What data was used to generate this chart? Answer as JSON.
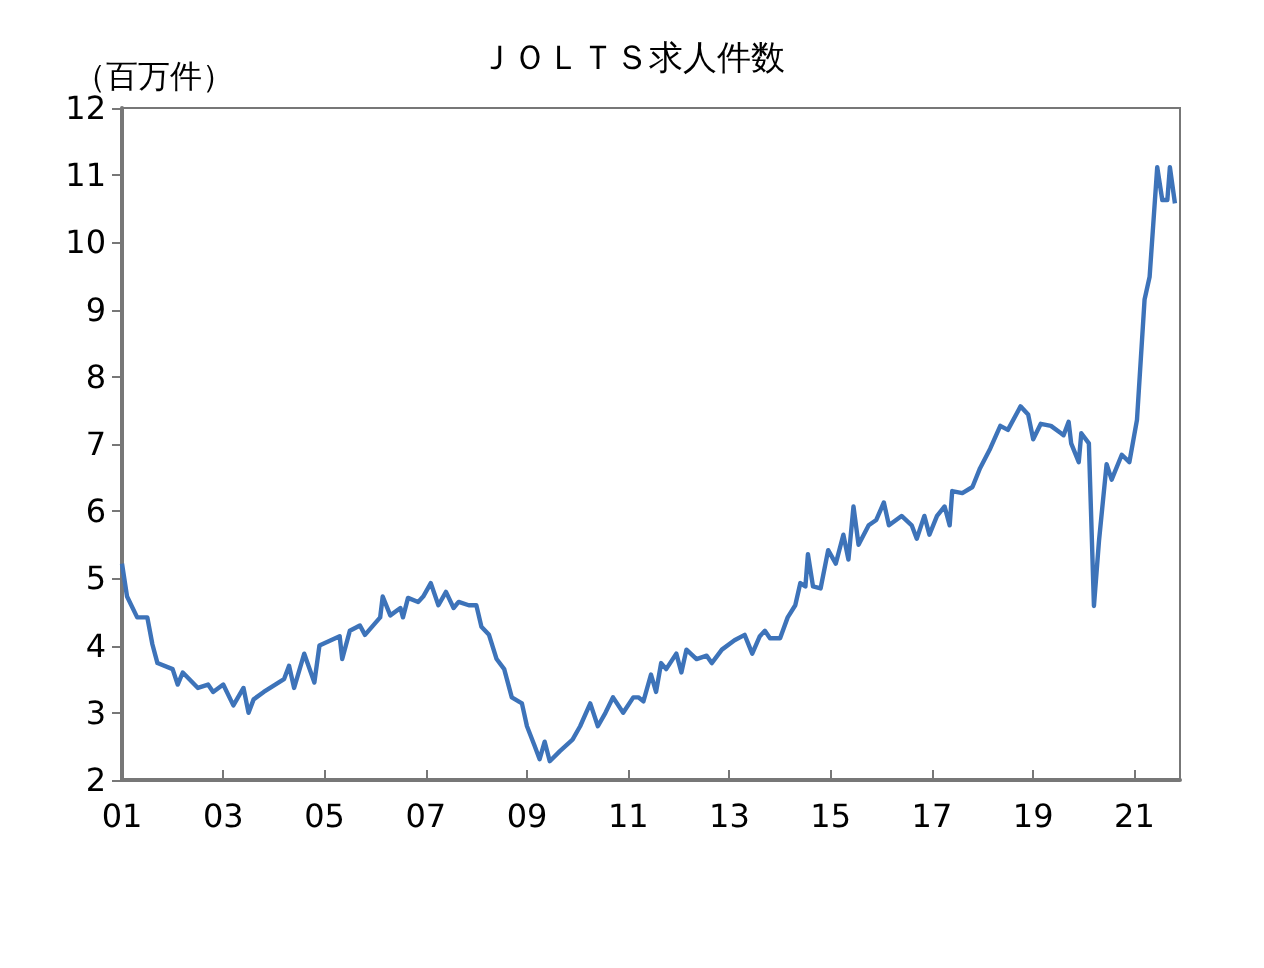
{
  "chart_data": {
    "type": "line",
    "title": "ＪＯＬＴＳ求人件数",
    "ylabel": "（百万件）",
    "xlim": [
      2001,
      2021.9
    ],
    "ylim": [
      2,
      12
    ],
    "xticks": [
      {
        "value": 2001,
        "label": "01"
      },
      {
        "value": 2003,
        "label": "03"
      },
      {
        "value": 2005,
        "label": "05"
      },
      {
        "value": 2007,
        "label": "07"
      },
      {
        "value": 2009,
        "label": "09"
      },
      {
        "value": 2011,
        "label": "11"
      },
      {
        "value": 2013,
        "label": "13"
      },
      {
        "value": 2015,
        "label": "15"
      },
      {
        "value": 2017,
        "label": "17"
      },
      {
        "value": 2019,
        "label": "19"
      },
      {
        "value": 2021,
        "label": "21"
      }
    ],
    "yticks": [
      2,
      3,
      4,
      5,
      6,
      7,
      8,
      9,
      10,
      11,
      12
    ],
    "marker": "none",
    "series": [
      {
        "color": "#3d73b9",
        "x": [
          2001.0,
          2001.1,
          2001.3,
          2001.5,
          2001.6,
          2001.7,
          2002.0,
          2002.1,
          2002.2,
          2002.5,
          2002.7,
          2002.8,
          2003.0,
          2003.2,
          2003.4,
          2003.5,
          2003.6,
          2003.8,
          2004.2,
          2004.3,
          2004.4,
          2004.6,
          2004.8,
          2004.9,
          2005.3,
          2005.35,
          2005.5,
          2005.7,
          2005.8,
          2006.1,
          2006.15,
          2006.3,
          2006.5,
          2006.55,
          2006.65,
          2006.85,
          2006.95,
          2007.1,
          2007.25,
          2007.4,
          2007.55,
          2007.65,
          2007.85,
          2008.0,
          2008.1,
          2008.25,
          2008.4,
          2008.55,
          2008.7,
          2008.9,
          2009.0,
          2009.15,
          2009.25,
          2009.35,
          2009.45,
          2009.65,
          2009.9,
          2010.05,
          2010.25,
          2010.4,
          2010.55,
          2010.7,
          2010.9,
          2011.1,
          2011.2,
          2011.3,
          2011.45,
          2011.55,
          2011.65,
          2011.75,
          2011.95,
          2012.05,
          2012.15,
          2012.35,
          2012.55,
          2012.65,
          2012.85,
          2013.1,
          2013.3,
          2013.45,
          2013.6,
          2013.7,
          2013.8,
          2014.0,
          2014.15,
          2014.3,
          2014.4,
          2014.5,
          2014.55,
          2014.65,
          2014.8,
          2014.95,
          2015.1,
          2015.25,
          2015.35,
          2015.45,
          2015.55,
          2015.75,
          2015.9,
          2016.05,
          2016.15,
          2016.4,
          2016.6,
          2016.7,
          2016.85,
          2016.95,
          2017.1,
          2017.25,
          2017.35,
          2017.4,
          2017.6,
          2017.8,
          2017.95,
          2018.15,
          2018.35,
          2018.5,
          2018.75,
          2018.9,
          2019.0,
          2019.15,
          2019.35,
          2019.55,
          2019.6,
          2019.7,
          2019.75,
          2019.9,
          2019.95,
          2020.1,
          2020.2,
          2020.3,
          2020.45,
          2020.55,
          2020.75,
          2020.9,
          2021.05,
          2021.2,
          2021.3,
          2021.45,
          2021.55,
          2021.65,
          2021.7,
          2021.8
        ],
        "values": [
          5.22,
          4.73,
          4.42,
          4.42,
          4.02,
          3.74,
          3.65,
          3.42,
          3.6,
          3.37,
          3.42,
          3.31,
          3.42,
          3.11,
          3.37,
          3.0,
          3.2,
          3.31,
          3.5,
          3.7,
          3.37,
          3.88,
          3.45,
          4.0,
          4.14,
          3.8,
          4.22,
          4.3,
          4.16,
          4.42,
          4.73,
          4.45,
          4.56,
          4.42,
          4.71,
          4.65,
          4.73,
          4.93,
          4.6,
          4.8,
          4.56,
          4.65,
          4.6,
          4.6,
          4.28,
          4.16,
          3.8,
          3.65,
          3.23,
          3.14,
          2.8,
          2.51,
          2.31,
          2.57,
          2.28,
          2.43,
          2.6,
          2.8,
          3.14,
          2.8,
          3.0,
          3.23,
          3.0,
          3.23,
          3.23,
          3.17,
          3.57,
          3.31,
          3.74,
          3.65,
          3.88,
          3.6,
          3.94,
          3.8,
          3.85,
          3.74,
          3.94,
          4.08,
          4.16,
          3.88,
          4.14,
          4.22,
          4.11,
          4.11,
          4.42,
          4.6,
          4.93,
          4.88,
          5.36,
          4.88,
          4.85,
          5.42,
          5.22,
          5.65,
          5.28,
          6.07,
          5.5,
          5.79,
          5.87,
          6.13,
          5.79,
          5.93,
          5.79,
          5.59,
          5.93,
          5.65,
          5.93,
          6.07,
          5.79,
          6.3,
          6.27,
          6.36,
          6.64,
          6.93,
          7.27,
          7.21,
          7.56,
          7.44,
          7.07,
          7.3,
          7.27,
          7.16,
          7.13,
          7.33,
          7.01,
          6.73,
          7.16,
          7.01,
          4.59,
          5.56,
          6.7,
          6.47,
          6.84,
          6.73,
          7.36,
          9.15,
          9.49,
          11.12,
          10.63,
          10.63,
          11.12,
          10.58
        ]
      }
    ]
  }
}
